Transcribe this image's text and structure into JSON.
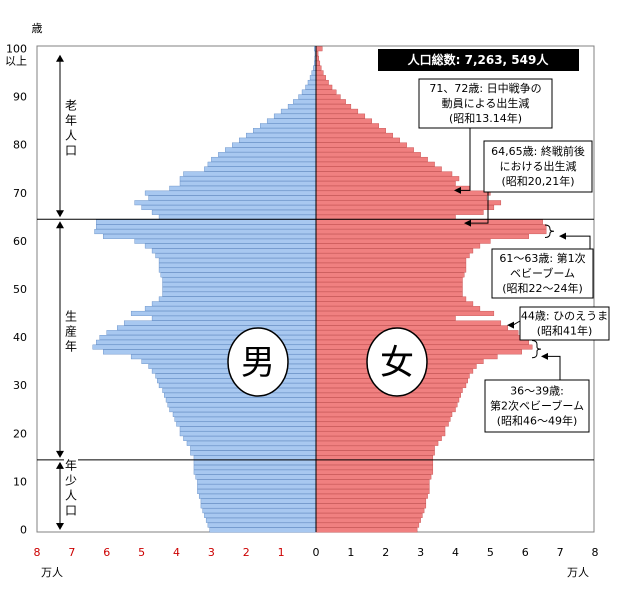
{
  "chart_data": {
    "type": "bar",
    "subtype": "population-pyramid",
    "total_label": "人口総数: 7,263, 549人",
    "y_axis_unit": "歳",
    "x_unit_left": "万人",
    "x_unit_right": "万人",
    "age_tick_labels": [
      "0",
      "10",
      "20",
      "30",
      "40",
      "50",
      "60",
      "70",
      "80",
      "90",
      "100",
      "以上"
    ],
    "x_tick_labels_left": [
      "8",
      "7",
      "6",
      "5",
      "4",
      "3",
      "2",
      "1"
    ],
    "x_tick_labels_right": [
      "0",
      "1",
      "2",
      "3",
      "4",
      "5",
      "6",
      "7",
      "8"
    ],
    "xlim": [
      0,
      8
    ],
    "ylim": [
      0,
      100
    ],
    "series": [
      {
        "name": "男",
        "color": "#a8c8f0",
        "values": [
          3.05,
          3.1,
          3.15,
          3.2,
          3.25,
          3.3,
          3.3,
          3.35,
          3.4,
          3.4,
          3.4,
          3.45,
          3.5,
          3.5,
          3.5,
          3.5,
          3.6,
          3.6,
          3.7,
          3.8,
          3.9,
          3.9,
          4.0,
          4.05,
          4.1,
          4.2,
          4.25,
          4.3,
          4.35,
          4.4,
          4.5,
          4.55,
          4.6,
          4.7,
          4.8,
          5.0,
          5.3,
          6.1,
          6.4,
          6.3,
          6.2,
          6.0,
          5.7,
          5.5,
          4.7,
          5.3,
          4.9,
          4.7,
          4.5,
          4.4,
          4.4,
          4.4,
          4.4,
          4.45,
          4.5,
          4.5,
          4.5,
          4.6,
          4.7,
          4.9,
          5.2,
          6.1,
          6.35,
          6.3,
          6.3,
          4.5,
          4.7,
          5.0,
          5.2,
          4.8,
          4.9,
          4.2,
          3.9,
          3.9,
          3.8,
          3.2,
          3.1,
          3.0,
          2.8,
          2.6,
          2.4,
          2.2,
          2.0,
          1.8,
          1.6,
          1.4,
          1.2,
          1.0,
          0.8,
          0.65,
          0.5,
          0.4,
          0.3,
          0.23,
          0.17,
          0.12,
          0.08,
          0.05,
          0.04,
          0.03,
          0.05
        ]
      },
      {
        "name": "女",
        "color": "#f08080",
        "values": [
          2.9,
          2.95,
          3.0,
          3.05,
          3.1,
          3.15,
          3.15,
          3.2,
          3.25,
          3.25,
          3.25,
          3.3,
          3.35,
          3.35,
          3.35,
          3.35,
          3.4,
          3.4,
          3.5,
          3.6,
          3.7,
          3.7,
          3.8,
          3.85,
          3.9,
          4.0,
          4.05,
          4.1,
          4.15,
          4.2,
          4.3,
          4.35,
          4.4,
          4.5,
          4.6,
          4.8,
          5.2,
          5.9,
          6.2,
          6.1,
          6.0,
          5.8,
          5.5,
          5.3,
          4.0,
          5.1,
          4.7,
          4.5,
          4.3,
          4.2,
          4.2,
          4.2,
          4.2,
          4.25,
          4.3,
          4.3,
          4.3,
          4.4,
          4.5,
          4.7,
          5.0,
          6.1,
          6.6,
          6.6,
          6.5,
          4.0,
          4.8,
          5.1,
          5.3,
          4.9,
          5.0,
          4.4,
          4.0,
          4.1,
          3.9,
          3.6,
          3.4,
          3.2,
          3.0,
          2.8,
          2.6,
          2.4,
          2.2,
          2.0,
          1.8,
          1.6,
          1.4,
          1.2,
          1.0,
          0.85,
          0.7,
          0.58,
          0.46,
          0.36,
          0.28,
          0.21,
          0.15,
          0.11,
          0.08,
          0.06,
          0.18
        ]
      }
    ],
    "segments": [
      {
        "label": "老年人口",
        "chars": [
          "老",
          "年",
          "人",
          "口"
        ],
        "from": 65,
        "to": 100
      },
      {
        "label": "生産年",
        "chars": [
          "生",
          "産",
          "年"
        ],
        "from": 15,
        "to": 65
      },
      {
        "label": "年少人口",
        "chars": [
          "年",
          "少",
          "人",
          "口"
        ],
        "from": 0,
        "to": 15
      }
    ],
    "divider_ages": [
      65,
      15
    ],
    "annotations": [
      {
        "lines": [
          "71、72歳: 日中戦争の",
          "動員による出生減",
          "(昭和13.14年)"
        ],
        "age": 71.5
      },
      {
        "lines": [
          "64,65歳: 終戦前後",
          "における出生減",
          "(昭和20,21年)"
        ],
        "age": 65
      },
      {
        "lines": [
          "61～63歳: 第1次",
          "ベビーブーム",
          "(昭和22～24年)"
        ],
        "age": 62
      },
      {
        "lines": [
          "44歳: ひのえうま",
          "(昭和41年)"
        ],
        "age": 44
      },
      {
        "lines": [
          "36～39歳:",
          "第2次ベビーブーム",
          "(昭和46～49年)"
        ],
        "age": 37.5
      }
    ]
  }
}
